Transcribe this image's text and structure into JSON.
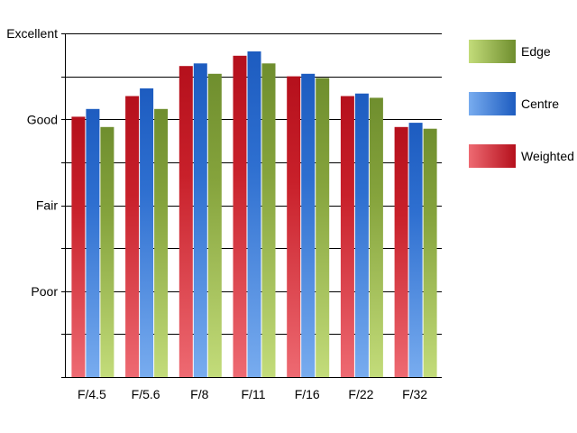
{
  "chart_data": {
    "type": "bar",
    "title": "",
    "xlabel": "",
    "ylabel": "",
    "categories": [
      "F/4.5",
      "F/5.6",
      "F/8",
      "F/11",
      "F/16",
      "F/22",
      "F/32"
    ],
    "y_ticks": [
      {
        "label": "Poor",
        "value": 1
      },
      {
        "label": "Fair",
        "value": 2
      },
      {
        "label": "Good",
        "value": 3
      },
      {
        "label": "Excellent",
        "value": 4
      }
    ],
    "ylim": [
      0,
      4
    ],
    "grid": true,
    "legend_position": "right",
    "series": [
      {
        "name": "Weighted",
        "color": "#d9323c",
        "values": [
          3.03,
          3.27,
          3.62,
          3.74,
          3.5,
          3.27,
          2.91
        ]
      },
      {
        "name": "Centre",
        "color": "#3f7fd6",
        "values": [
          3.12,
          3.36,
          3.65,
          3.79,
          3.53,
          3.3,
          2.96
        ]
      },
      {
        "name": "Edge",
        "color": "#8fb04a",
        "values": [
          2.91,
          3.12,
          3.53,
          3.65,
          3.48,
          3.25,
          2.89
        ]
      }
    ],
    "legend_order": [
      "Edge",
      "Centre",
      "Weighted"
    ]
  }
}
